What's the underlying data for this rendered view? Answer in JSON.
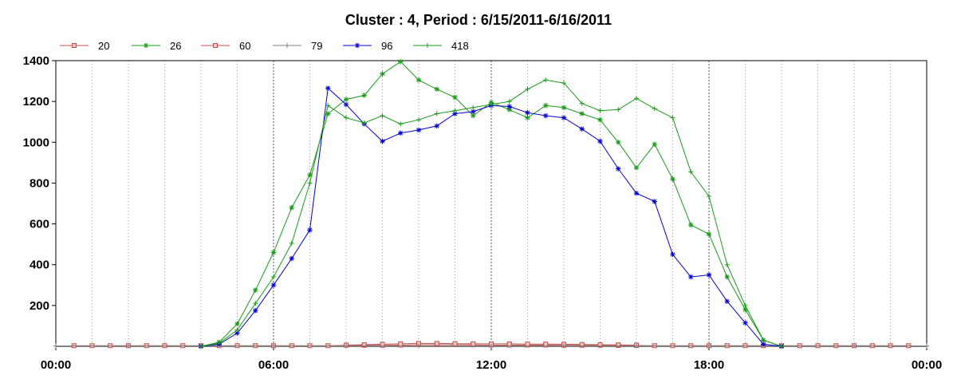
{
  "chart_data": {
    "type": "line",
    "title": "Cluster : 4, Period : 6/15/2011-6/16/2011",
    "xlabel": "",
    "ylabel": "",
    "x_unit": "hours",
    "x_range": [
      0,
      24
    ],
    "ylim": [
      0,
      1400
    ],
    "x_ticks": [
      {
        "value": 0,
        "label": "00:00"
      },
      {
        "value": 6,
        "label": "06:00"
      },
      {
        "value": 12,
        "label": "12:00"
      },
      {
        "value": 18,
        "label": "18:00"
      },
      {
        "value": 24,
        "label": "00:00"
      }
    ],
    "y_ticks": [
      {
        "value": 200,
        "label": "200"
      },
      {
        "value": 400,
        "label": "400"
      },
      {
        "value": 600,
        "label": "600"
      },
      {
        "value": 800,
        "label": "800"
      },
      {
        "value": 1000,
        "label": "1000"
      },
      {
        "value": 1200,
        "label": "1200"
      },
      {
        "value": 1400,
        "label": "1400"
      }
    ],
    "grid": {
      "vertical_dotted": true,
      "major_every_hours": 6,
      "minor_every_hours": 1
    },
    "legend_position": "top-left",
    "series": [
      {
        "name": "20",
        "color": "#c0504d",
        "marker": "square",
        "x": [
          0.5,
          1,
          1.5,
          2,
          2.5,
          3,
          3.5,
          4,
          4.5,
          5,
          5.5,
          6,
          6.5,
          7,
          7.5,
          8,
          8.5,
          9,
          9.5,
          10,
          10.5,
          11,
          11.5,
          12,
          12.5,
          13,
          13.5,
          14,
          14.5,
          15,
          15.5,
          16,
          16.5,
          17,
          17.5,
          18,
          18.5,
          19,
          19.5,
          20,
          20.5,
          21,
          21.5,
          22,
          22.5,
          23,
          23.5
        ],
        "y": [
          3,
          3,
          3,
          3,
          3,
          3,
          3,
          3,
          3,
          3,
          3,
          3,
          3,
          3,
          3,
          5,
          5,
          5,
          6,
          8,
          8,
          8,
          7,
          6,
          6,
          6,
          6,
          5,
          5,
          5,
          4,
          4,
          3,
          3,
          3,
          3,
          3,
          3,
          3,
          3,
          3,
          3,
          3,
          3,
          3,
          3,
          3
        ]
      },
      {
        "name": "26",
        "color": "#1a9a1a",
        "marker": "star",
        "x": [
          4,
          4.5,
          5,
          5.5,
          6,
          6.5,
          7,
          7.5,
          8,
          8.5,
          9,
          9.5,
          10,
          10.5,
          11,
          11.5,
          12,
          12.5,
          13,
          13.5,
          14,
          14.5,
          15,
          15.5,
          16,
          16.5,
          17,
          17.5,
          18,
          18.5,
          19,
          19.5,
          20
        ],
        "y": [
          0,
          20,
          110,
          275,
          460,
          680,
          840,
          1140,
          1210,
          1230,
          1335,
          1395,
          1305,
          1260,
          1220,
          1130,
          1195,
          1160,
          1120,
          1180,
          1170,
          1140,
          1110,
          1000,
          875,
          990,
          820,
          595,
          550,
          340,
          180,
          30,
          0
        ]
      },
      {
        "name": "60",
        "color": "#c0504d",
        "marker": "square",
        "x": [
          8,
          8.5,
          9,
          9.5,
          10,
          10.5,
          11,
          11.5,
          12,
          12.5,
          13,
          13.5,
          14,
          14.5,
          15,
          15.5,
          16
        ],
        "y": [
          6,
          8,
          10,
          12,
          14,
          14,
          13,
          12,
          12,
          12,
          11,
          11,
          10,
          9,
          8,
          7,
          6
        ]
      },
      {
        "name": "79",
        "color": "#808080",
        "marker": "plus",
        "x": [
          0,
          1,
          2,
          3,
          4,
          5,
          6,
          7,
          8,
          9,
          10,
          11,
          12,
          13,
          14,
          15,
          16,
          17,
          18,
          19,
          20,
          21,
          22,
          23,
          24
        ],
        "y": [
          2,
          2,
          2,
          2,
          2,
          2,
          2,
          2,
          2,
          2,
          2,
          2,
          2,
          2,
          2,
          2,
          2,
          2,
          2,
          2,
          2,
          2,
          2,
          2,
          2
        ]
      },
      {
        "name": "96",
        "color": "#0000cc",
        "marker": "star",
        "x": [
          4,
          4.5,
          5,
          5.5,
          6,
          6.5,
          7,
          7.5,
          8,
          8.5,
          9,
          9.5,
          10,
          10.5,
          11,
          11.5,
          12,
          12.5,
          13,
          13.5,
          14,
          14.5,
          15,
          15.5,
          16,
          16.5,
          17,
          17.5,
          18,
          18.5,
          19,
          19.5,
          20
        ],
        "y": [
          0,
          10,
          65,
          175,
          300,
          430,
          570,
          1265,
          1185,
          1090,
          1005,
          1045,
          1060,
          1080,
          1140,
          1150,
          1180,
          1175,
          1145,
          1130,
          1120,
          1065,
          1005,
          870,
          750,
          710,
          450,
          340,
          350,
          220,
          115,
          10,
          0
        ]
      },
      {
        "name": "418",
        "color": "#1a9a1a",
        "marker": "plus",
        "x": [
          4,
          4.5,
          5,
          5.5,
          6,
          6.5,
          7,
          7.5,
          8,
          8.5,
          9,
          9.5,
          10,
          10.5,
          11,
          11.5,
          12,
          12.5,
          13,
          13.5,
          14,
          14.5,
          15,
          15.5,
          16,
          16.5,
          17,
          17.5,
          18,
          18.5,
          19,
          19.5,
          20
        ],
        "y": [
          0,
          15,
          80,
          210,
          340,
          505,
          800,
          1180,
          1120,
          1095,
          1130,
          1090,
          1110,
          1140,
          1155,
          1170,
          1185,
          1200,
          1260,
          1305,
          1290,
          1190,
          1155,
          1160,
          1215,
          1165,
          1120,
          855,
          735,
          400,
          200,
          30,
          0
        ]
      }
    ]
  }
}
